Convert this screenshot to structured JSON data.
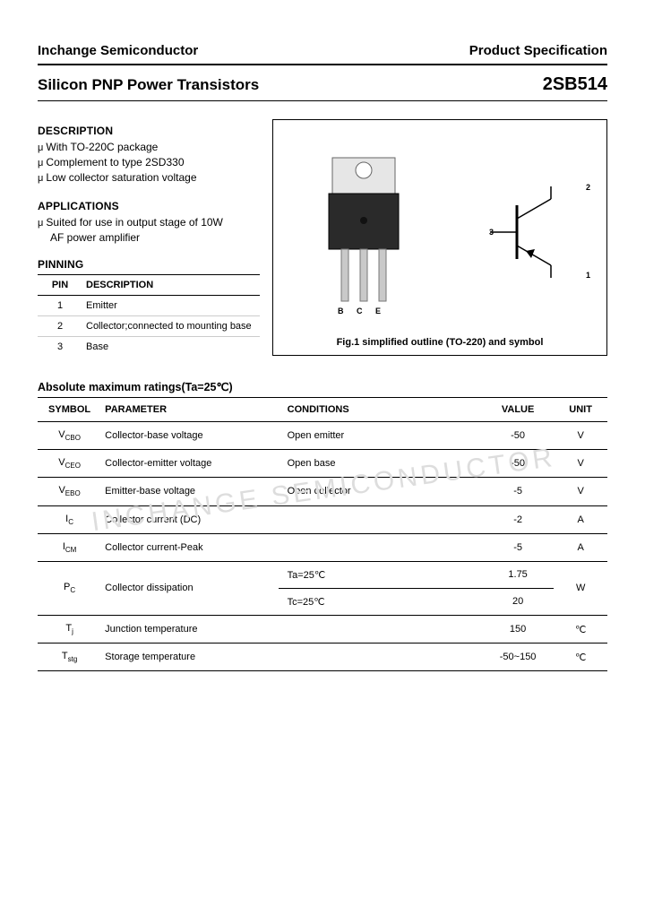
{
  "header": {
    "company": "Inchange Semiconductor",
    "doc_type": "Product Specification"
  },
  "title": {
    "left": "Silicon PNP Power Transistors",
    "right": "2SB514"
  },
  "description": {
    "heading": "DESCRIPTION",
    "items": [
      "With TO-220C package",
      "Complement to type 2SD330",
      "Low collector saturation voltage"
    ]
  },
  "applications": {
    "heading": "APPLICATIONS",
    "items": [
      "Suited for use in output stage of 10W"
    ],
    "cont": "AF power amplifier"
  },
  "pinning": {
    "heading": "PINNING",
    "cols": [
      "PIN",
      "DESCRIPTION"
    ],
    "rows": [
      {
        "pin": "1",
        "desc": "Emitter"
      },
      {
        "pin": "2",
        "desc": "Collector;connected to mounting base"
      },
      {
        "pin": "3",
        "desc": "Base"
      }
    ]
  },
  "figure": {
    "caption": "Fig.1 simplified outline (TO-220) and symbol",
    "pin_letters": [
      "B",
      "C",
      "E"
    ],
    "symbol_pins": [
      "1",
      "2",
      "3"
    ]
  },
  "ratings": {
    "heading": "Absolute maximum ratings(Ta=25℃)",
    "cols": [
      "SYMBOL",
      "PARAMETER",
      "CONDITIONS",
      "VALUE",
      "UNIT"
    ],
    "rows": [
      {
        "sym": "V",
        "sub": "CBO",
        "param": "Collector-base voltage",
        "cond": "Open emitter",
        "val": "-50",
        "unit": "V",
        "rowspan": 1
      },
      {
        "sym": "V",
        "sub": "CEO",
        "param": "Collector-emitter voltage",
        "cond": "Open base",
        "val": "-50",
        "unit": "V",
        "rowspan": 1
      },
      {
        "sym": "V",
        "sub": "EBO",
        "param": "Emitter-base voltage",
        "cond": "Open collector",
        "val": "-5",
        "unit": "V",
        "rowspan": 1
      },
      {
        "sym": "I",
        "sub": "C",
        "param": "Collector current (DC)",
        "cond": "",
        "val": "-2",
        "unit": "A",
        "rowspan": 1
      },
      {
        "sym": "I",
        "sub": "CM",
        "param": "Collector current-Peak",
        "cond": "",
        "val": "-5",
        "unit": "A",
        "rowspan": 1
      },
      {
        "sym": "P",
        "sub": "C",
        "param": "Collector dissipation",
        "cond": "Ta=25℃",
        "val": "1.75",
        "unit": "W",
        "rowspan": 2,
        "cond2": "Tc=25℃",
        "val2": "20"
      },
      {
        "sym": "T",
        "sub": "j",
        "param": "Junction temperature",
        "cond": "",
        "val": "150",
        "unit": "℃",
        "rowspan": 1
      },
      {
        "sym": "T",
        "sub": "stg",
        "param": "Storage temperature",
        "cond": "",
        "val": "-50~150",
        "unit": "℃",
        "rowspan": 1
      }
    ]
  },
  "watermark": "INCHANGE SEMICONDUCTOR",
  "colors": {
    "text": "#000000",
    "bg": "#ffffff",
    "watermark": "#dddddd",
    "rule": "#000000"
  }
}
